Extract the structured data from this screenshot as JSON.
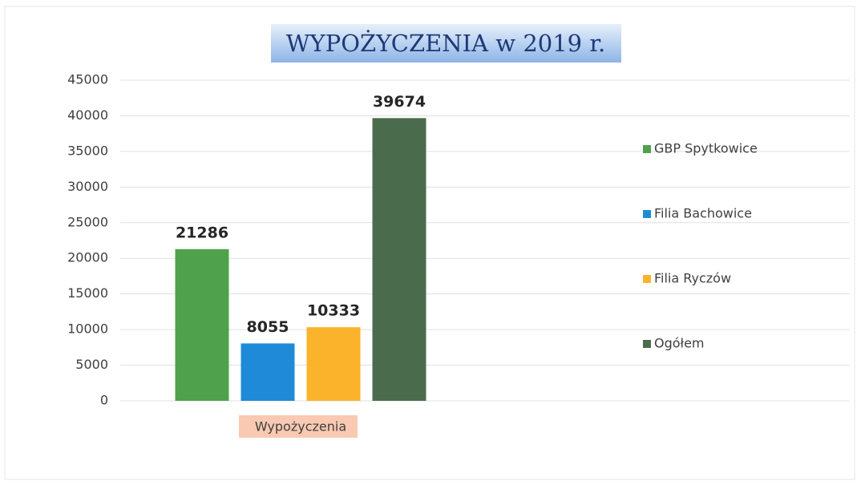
{
  "chart_data": {
    "type": "bar",
    "title": "WYPOŻYCZENIA w 2019 r.",
    "categories": [
      "Wypożyczenia"
    ],
    "series": [
      {
        "name": "GBP Spytkowice",
        "color": "#4fa24b",
        "values": [
          21286
        ]
      },
      {
        "name": "Filia Bachowice",
        "color": "#1f8bd8",
        "values": [
          8055
        ]
      },
      {
        "name": "Filia Ryczów",
        "color": "#fbb32b",
        "values": [
          10333
        ]
      },
      {
        "name": "Ogółem",
        "color": "#4b6c4c",
        "values": [
          39674
        ]
      }
    ],
    "ylim": [
      0,
      45000
    ],
    "yticks": [
      0,
      5000,
      10000,
      15000,
      20000,
      25000,
      30000,
      35000,
      40000,
      45000
    ],
    "grid": true,
    "legend": "right"
  }
}
